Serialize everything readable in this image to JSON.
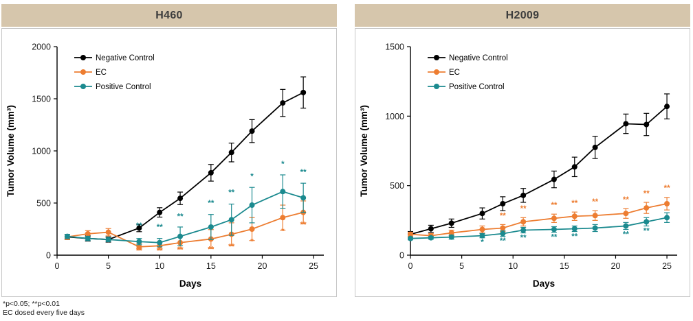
{
  "footnote": {
    "line1": "*p<0.05; **p<0.01",
    "line2": "EC dosed every five days"
  },
  "colors": {
    "negative": "#000000",
    "ec": "#ED7D31",
    "positive": "#1B8A8F",
    "header_bg": "#D6C6AC",
    "header_text": "#3D3D3D",
    "panel_border": "#C6C6C6",
    "axis": "#000000"
  },
  "chart_data": [
    {
      "type": "line",
      "title": "H460",
      "xlabel": "Days",
      "ylabel": "Tumor Volume (mm³)",
      "xlim": [
        0,
        26
      ],
      "ylim": [
        0,
        2000
      ],
      "xticks": [
        0,
        5,
        10,
        15,
        20,
        25
      ],
      "yticks": [
        0,
        500,
        1000,
        1500,
        2000
      ],
      "legend_position": "top-left",
      "grid": false,
      "x": [
        1,
        3,
        5,
        8,
        10,
        12,
        15,
        17,
        19,
        22,
        24
      ],
      "series": [
        {
          "name": "Negative Control",
          "color_key": "negative",
          "values": [
            175,
            160,
            150,
            260,
            410,
            545,
            790,
            985,
            1190,
            1460,
            1560
          ],
          "errors": [
            25,
            25,
            25,
            35,
            45,
            60,
            80,
            90,
            110,
            130,
            150
          ]
        },
        {
          "name": "EC",
          "color_key": "ec",
          "values": [
            175,
            205,
            220,
            80,
            90,
            120,
            155,
            200,
            250,
            360,
            410
          ],
          "errors": [
            25,
            30,
            35,
            30,
            40,
            60,
            90,
            110,
            110,
            120,
            110
          ]
        },
        {
          "name": "Positive Control",
          "color_key": "positive",
          "values": [
            180,
            160,
            150,
            130,
            120,
            180,
            270,
            340,
            480,
            610,
            550
          ],
          "errors": [
            20,
            20,
            20,
            30,
            40,
            90,
            120,
            150,
            170,
            160,
            140
          ]
        }
      ],
      "annotations": [
        {
          "x": 8,
          "y": 255,
          "text": "**",
          "color_key": "positive"
        },
        {
          "x": 10,
          "y": 245,
          "text": "**",
          "color_key": "positive"
        },
        {
          "x": 12,
          "y": 345,
          "text": "**",
          "color_key": "positive"
        },
        {
          "x": 15,
          "y": 475,
          "text": "**",
          "color_key": "positive"
        },
        {
          "x": 17,
          "y": 575,
          "text": "**",
          "color_key": "positive"
        },
        {
          "x": 19,
          "y": 730,
          "text": "*",
          "color_key": "positive"
        },
        {
          "x": 22,
          "y": 850,
          "text": "*",
          "color_key": "positive"
        },
        {
          "x": 24,
          "y": 770,
          "text": "**",
          "color_key": "positive"
        },
        {
          "x": 8,
          "y": 15,
          "text": "**",
          "color_key": "ec"
        },
        {
          "x": 10,
          "y": 15,
          "text": "**",
          "color_key": "ec"
        },
        {
          "x": 12,
          "y": 25,
          "text": "**",
          "color_key": "ec"
        },
        {
          "x": 15,
          "y": 30,
          "text": "**",
          "color_key": "ec"
        },
        {
          "x": 17,
          "y": 55,
          "text": "**",
          "color_key": "ec"
        },
        {
          "x": 19,
          "y": 105,
          "text": "*",
          "color_key": "ec"
        },
        {
          "x": 22,
          "y": 205,
          "text": "*",
          "color_key": "ec"
        },
        {
          "x": 24,
          "y": 265,
          "text": "**",
          "color_key": "ec"
        }
      ]
    },
    {
      "type": "line",
      "title": "H2009",
      "xlabel": "Days",
      "ylabel": "Tumor Volume (mm³)",
      "xlim": [
        0,
        26
      ],
      "ylim": [
        0,
        1500
      ],
      "xticks": [
        0,
        5,
        10,
        15,
        20,
        25
      ],
      "yticks": [
        0,
        500,
        1000,
        1500
      ],
      "legend_position": "top-left",
      "grid": false,
      "x": [
        0,
        2,
        4,
        7,
        9,
        11,
        14,
        16,
        18,
        21,
        23,
        25
      ],
      "series": [
        {
          "name": "Negative Control",
          "color_key": "negative",
          "values": [
            150,
            190,
            230,
            300,
            370,
            430,
            545,
            635,
            775,
            945,
            940,
            1070
          ],
          "errors": [
            20,
            25,
            30,
            40,
            50,
            50,
            60,
            70,
            80,
            70,
            80,
            90
          ]
        },
        {
          "name": "EC",
          "color_key": "ec",
          "values": [
            150,
            140,
            160,
            185,
            195,
            240,
            265,
            280,
            285,
            300,
            340,
            370
          ],
          "errors": [
            15,
            15,
            20,
            25,
            25,
            30,
            30,
            30,
            35,
            35,
            40,
            45
          ]
        },
        {
          "name": "Positive Control",
          "color_key": "positive",
          "values": [
            120,
            125,
            130,
            140,
            155,
            180,
            185,
            190,
            195,
            210,
            240,
            270
          ],
          "errors": [
            10,
            10,
            15,
            15,
            20,
            20,
            20,
            20,
            25,
            25,
            30,
            35
          ]
        }
      ],
      "annotations": [
        {
          "x": 9,
          "y": 265,
          "text": "**",
          "color_key": "ec"
        },
        {
          "x": 11,
          "y": 315,
          "text": "**",
          "color_key": "ec"
        },
        {
          "x": 14,
          "y": 340,
          "text": "**",
          "color_key": "ec"
        },
        {
          "x": 16,
          "y": 355,
          "text": "**",
          "color_key": "ec"
        },
        {
          "x": 18,
          "y": 365,
          "text": "**",
          "color_key": "ec"
        },
        {
          "x": 21,
          "y": 380,
          "text": "**",
          "color_key": "ec"
        },
        {
          "x": 23,
          "y": 425,
          "text": "**",
          "color_key": "ec"
        },
        {
          "x": 25,
          "y": 465,
          "text": "**",
          "color_key": "ec"
        },
        {
          "x": 7,
          "y": 75,
          "text": "*",
          "color_key": "positive"
        },
        {
          "x": 9,
          "y": 85,
          "text": "**",
          "color_key": "positive"
        },
        {
          "x": 11,
          "y": 105,
          "text": "**",
          "color_key": "positive"
        },
        {
          "x": 14,
          "y": 110,
          "text": "**",
          "color_key": "positive"
        },
        {
          "x": 16,
          "y": 115,
          "text": "**",
          "color_key": "positive"
        },
        {
          "x": 21,
          "y": 130,
          "text": "**",
          "color_key": "positive"
        },
        {
          "x": 23,
          "y": 155,
          "text": "**",
          "color_key": "positive"
        }
      ]
    }
  ]
}
